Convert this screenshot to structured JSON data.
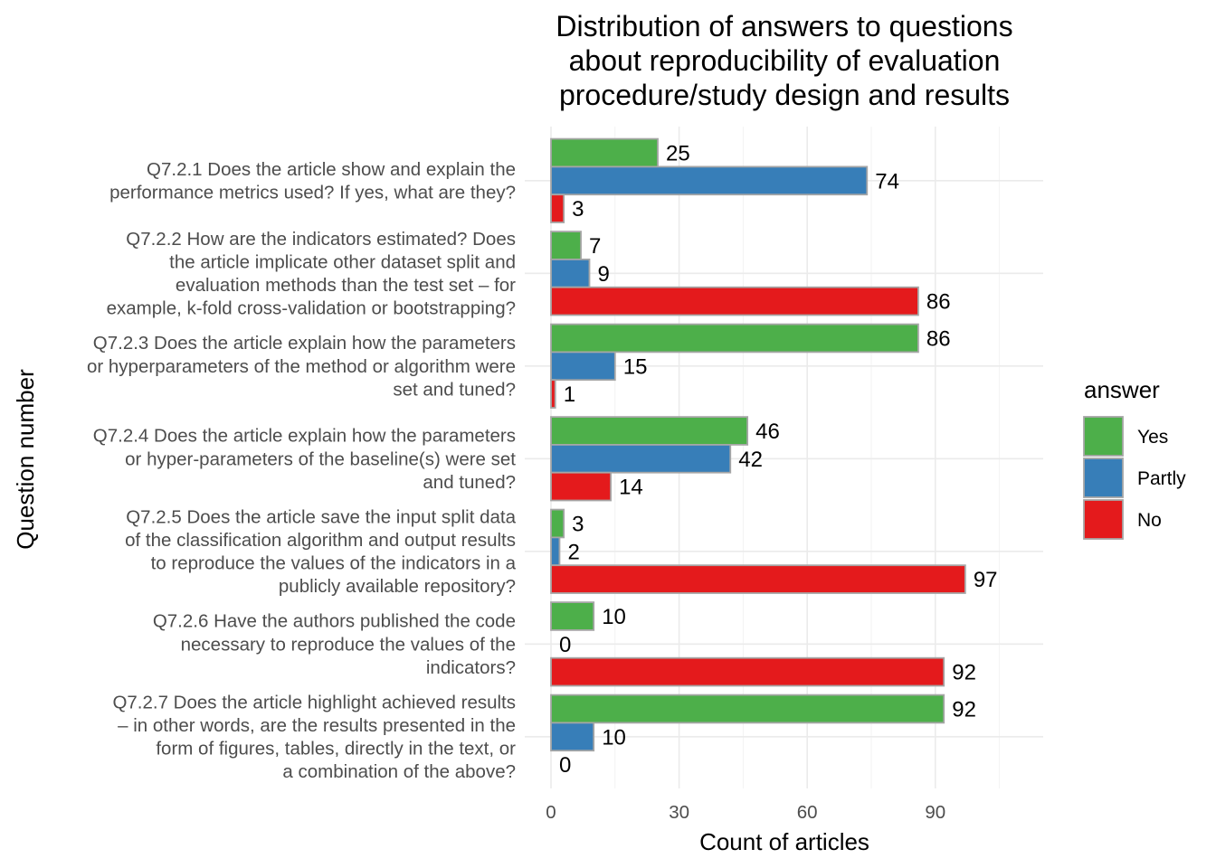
{
  "chart_data": {
    "type": "bar",
    "orientation": "horizontal",
    "title_lines": [
      "Distribution of answers to questions",
      "about reproducibility of evaluation",
      "procedure/study design and results"
    ],
    "xlabel": "Count of articles",
    "ylabel": "Question number",
    "xlim": [
      0,
      115
    ],
    "xticks": [
      0,
      30,
      60,
      90
    ],
    "grid": true,
    "legend": {
      "title": "answer",
      "placement": "right",
      "entries": [
        "Yes",
        "Partly",
        "No"
      ]
    },
    "colors": {
      "Yes": "#4daf4a",
      "Partly": "#377eb8",
      "No": "#e41a1c",
      "bar_border": "#a6a6a6"
    },
    "categories": [
      [
        "Q7.2.1 Does the article show and explain the",
        "performance metrics used? If yes, what are they?"
      ],
      [
        "Q7.2.2 How are the indicators estimated? Does",
        "the article implicate other dataset split and",
        "evaluation methods than the test set – for",
        "example, k-fold cross-validation or bootstrapping?"
      ],
      [
        "Q7.2.3 Does the article explain how the parameters",
        "or hyperparameters of the method or algorithm were",
        "set and tuned?"
      ],
      [
        "Q7.2.4 Does the article explain how the parameters",
        "or hyper-parameters of the baseline(s) were set",
        "and tuned?"
      ],
      [
        "Q7.2.5 Does the article save the input split data",
        "of the classification algorithm and output results",
        "to reproduce the values of the indicators in a",
        "publicly available repository?"
      ],
      [
        "Q7.2.6 Have the authors published the code",
        "necessary to reproduce the values of the",
        "indicators?"
      ],
      [
        "Q7.2.7 Does the article highlight achieved results",
        "– in other words, are the results presented in the",
        "form of figures, tables, directly in the text, or",
        "a combination of the above?"
      ]
    ],
    "series": [
      {
        "name": "Yes",
        "values": [
          25,
          7,
          86,
          46,
          3,
          10,
          92
        ]
      },
      {
        "name": "Partly",
        "values": [
          74,
          9,
          15,
          42,
          2,
          0,
          10
        ]
      },
      {
        "name": "No",
        "values": [
          3,
          86,
          1,
          14,
          97,
          92,
          0
        ]
      }
    ]
  }
}
